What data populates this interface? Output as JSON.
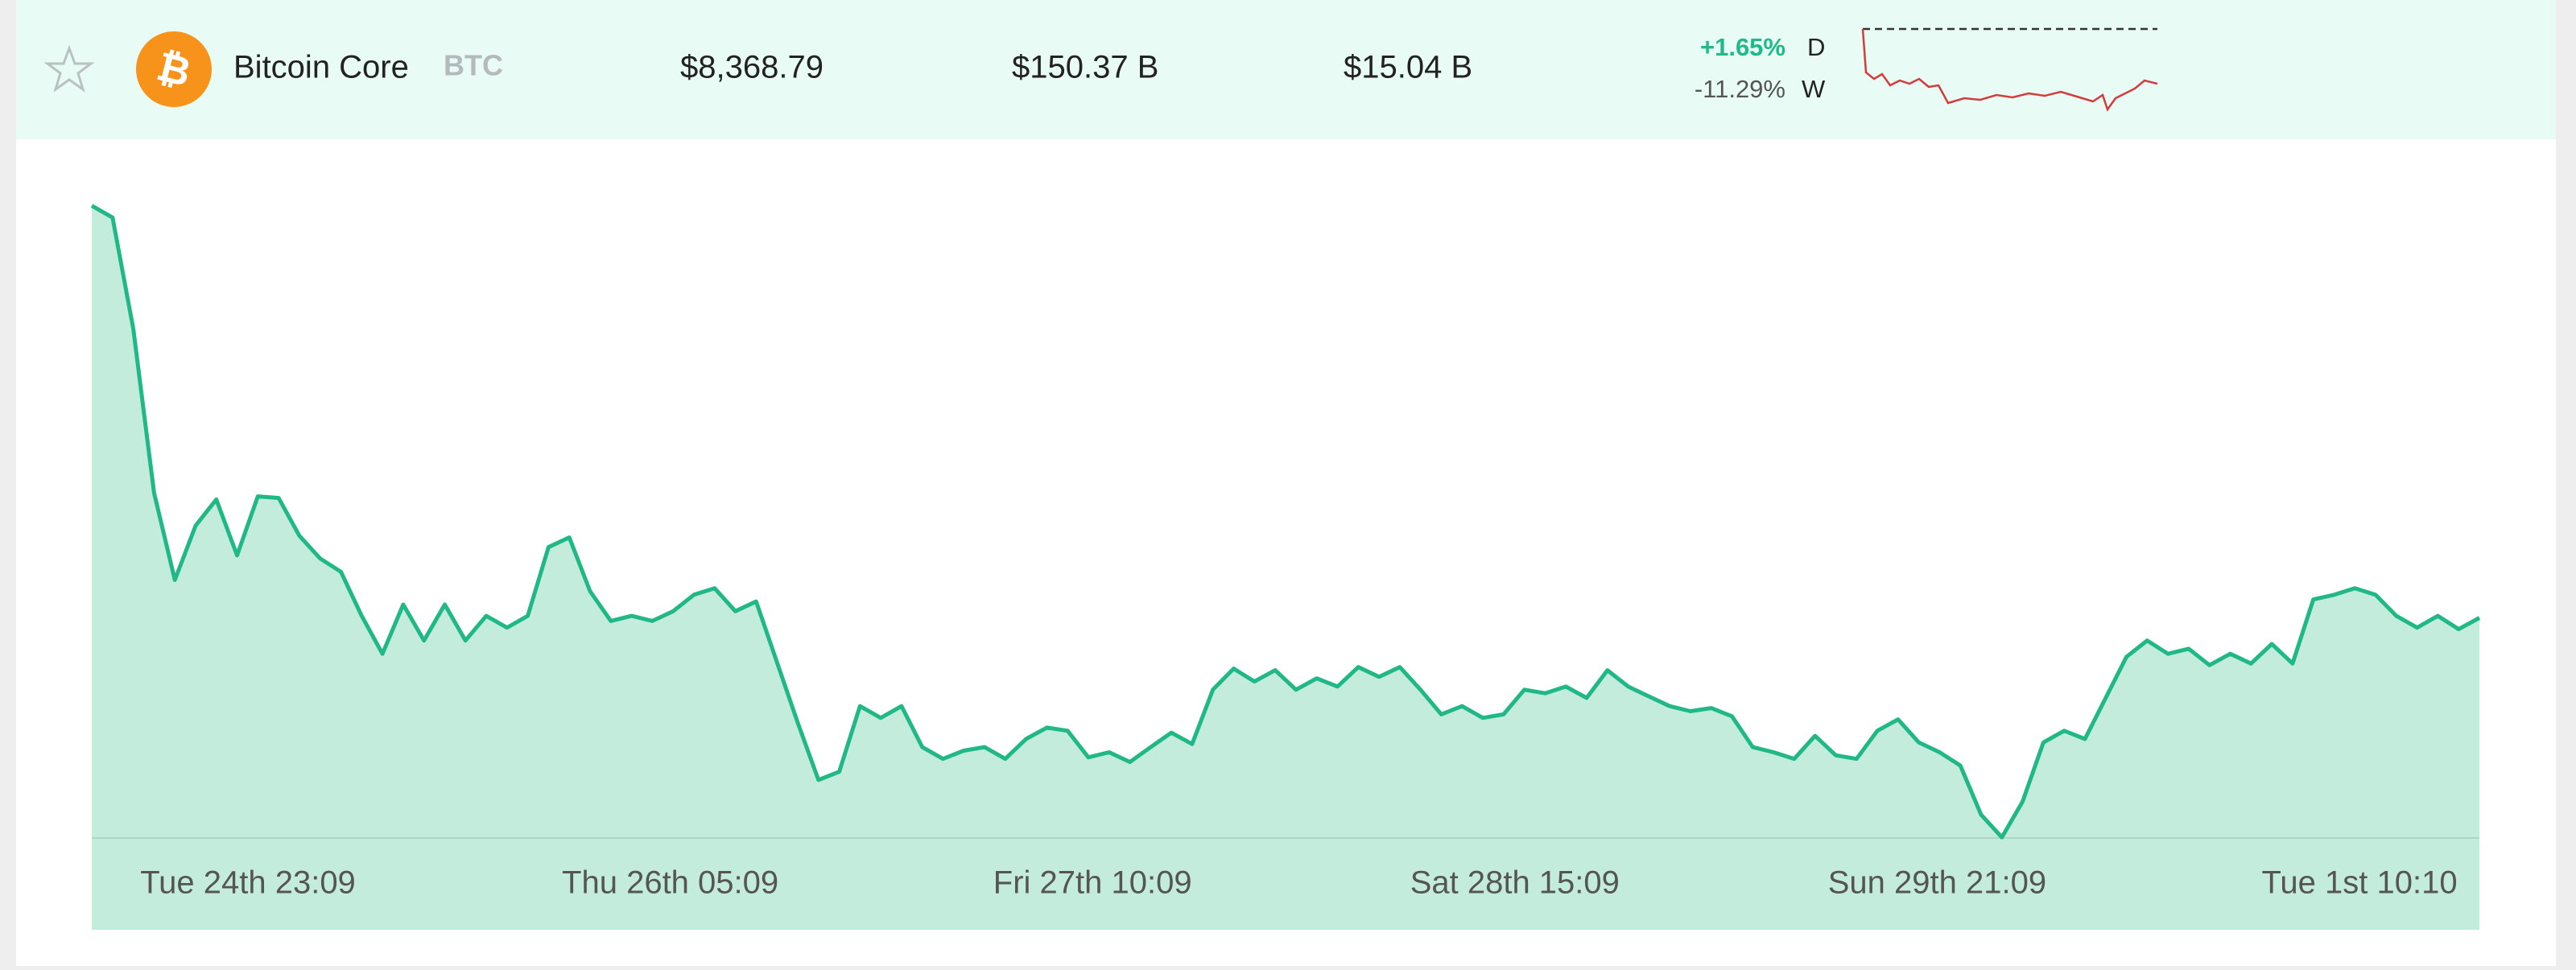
{
  "header": {
    "name": "Bitcoin Core",
    "symbol": "BTC",
    "price": "$8,368.79",
    "market_cap": "$150.37 B",
    "volume": "$15.04 B",
    "change_day": "+1.65%",
    "day_label": "D",
    "change_week": "-11.29%",
    "week_label": "W"
  },
  "chart_data": {
    "type": "area",
    "color": "#20b886",
    "fill_color": "#c4ecdc",
    "xtick_labels": [
      "Tue 24th 23:09",
      "Thu 26th 05:09",
      "Fri 27th 10:09",
      "Sat 28th 15:09",
      "Sun 29th 21:09",
      "Tue 1st 10:10"
    ],
    "ylim": [
      7800,
      9560
    ],
    "values": [
      9433,
      9403,
      9118,
      8698,
      8475,
      8614,
      8681,
      8538,
      8689,
      8685,
      8588,
      8530,
      8496,
      8383,
      8286,
      8412,
      8320,
      8412,
      8320,
      8383,
      8353,
      8383,
      8559,
      8584,
      8446,
      8370,
      8383,
      8370,
      8395,
      8437,
      8454,
      8395,
      8420,
      8265,
      8110,
      7963,
      7984,
      8152,
      8122,
      8152,
      8047,
      8017,
      8038,
      8047,
      8017,
      8068,
      8097,
      8089,
      8021,
      8034,
      8009,
      8047,
      8084,
      8055,
      8194,
      8248,
      8215,
      8244,
      8194,
      8223,
      8202,
      8252,
      8227,
      8252,
      8194,
      8131,
      8152,
      8122,
      8131,
      8194,
      8185,
      8202,
      8173,
      8244,
      8202,
      8177,
      8152,
      8139,
      8147,
      8126,
      8047,
      8034,
      8017,
      8076,
      8026,
      8017,
      8089,
      8118,
      8059,
      8034,
      8000,
      7874,
      7816,
      7908,
      8059,
      8089,
      8068,
      8173,
      8278,
      8320,
      8286,
      8299,
      8257,
      8286,
      8261,
      8311,
      8261,
      8425,
      8437,
      8454,
      8437,
      8383,
      8353,
      8383,
      8349,
      8378
    ]
  }
}
